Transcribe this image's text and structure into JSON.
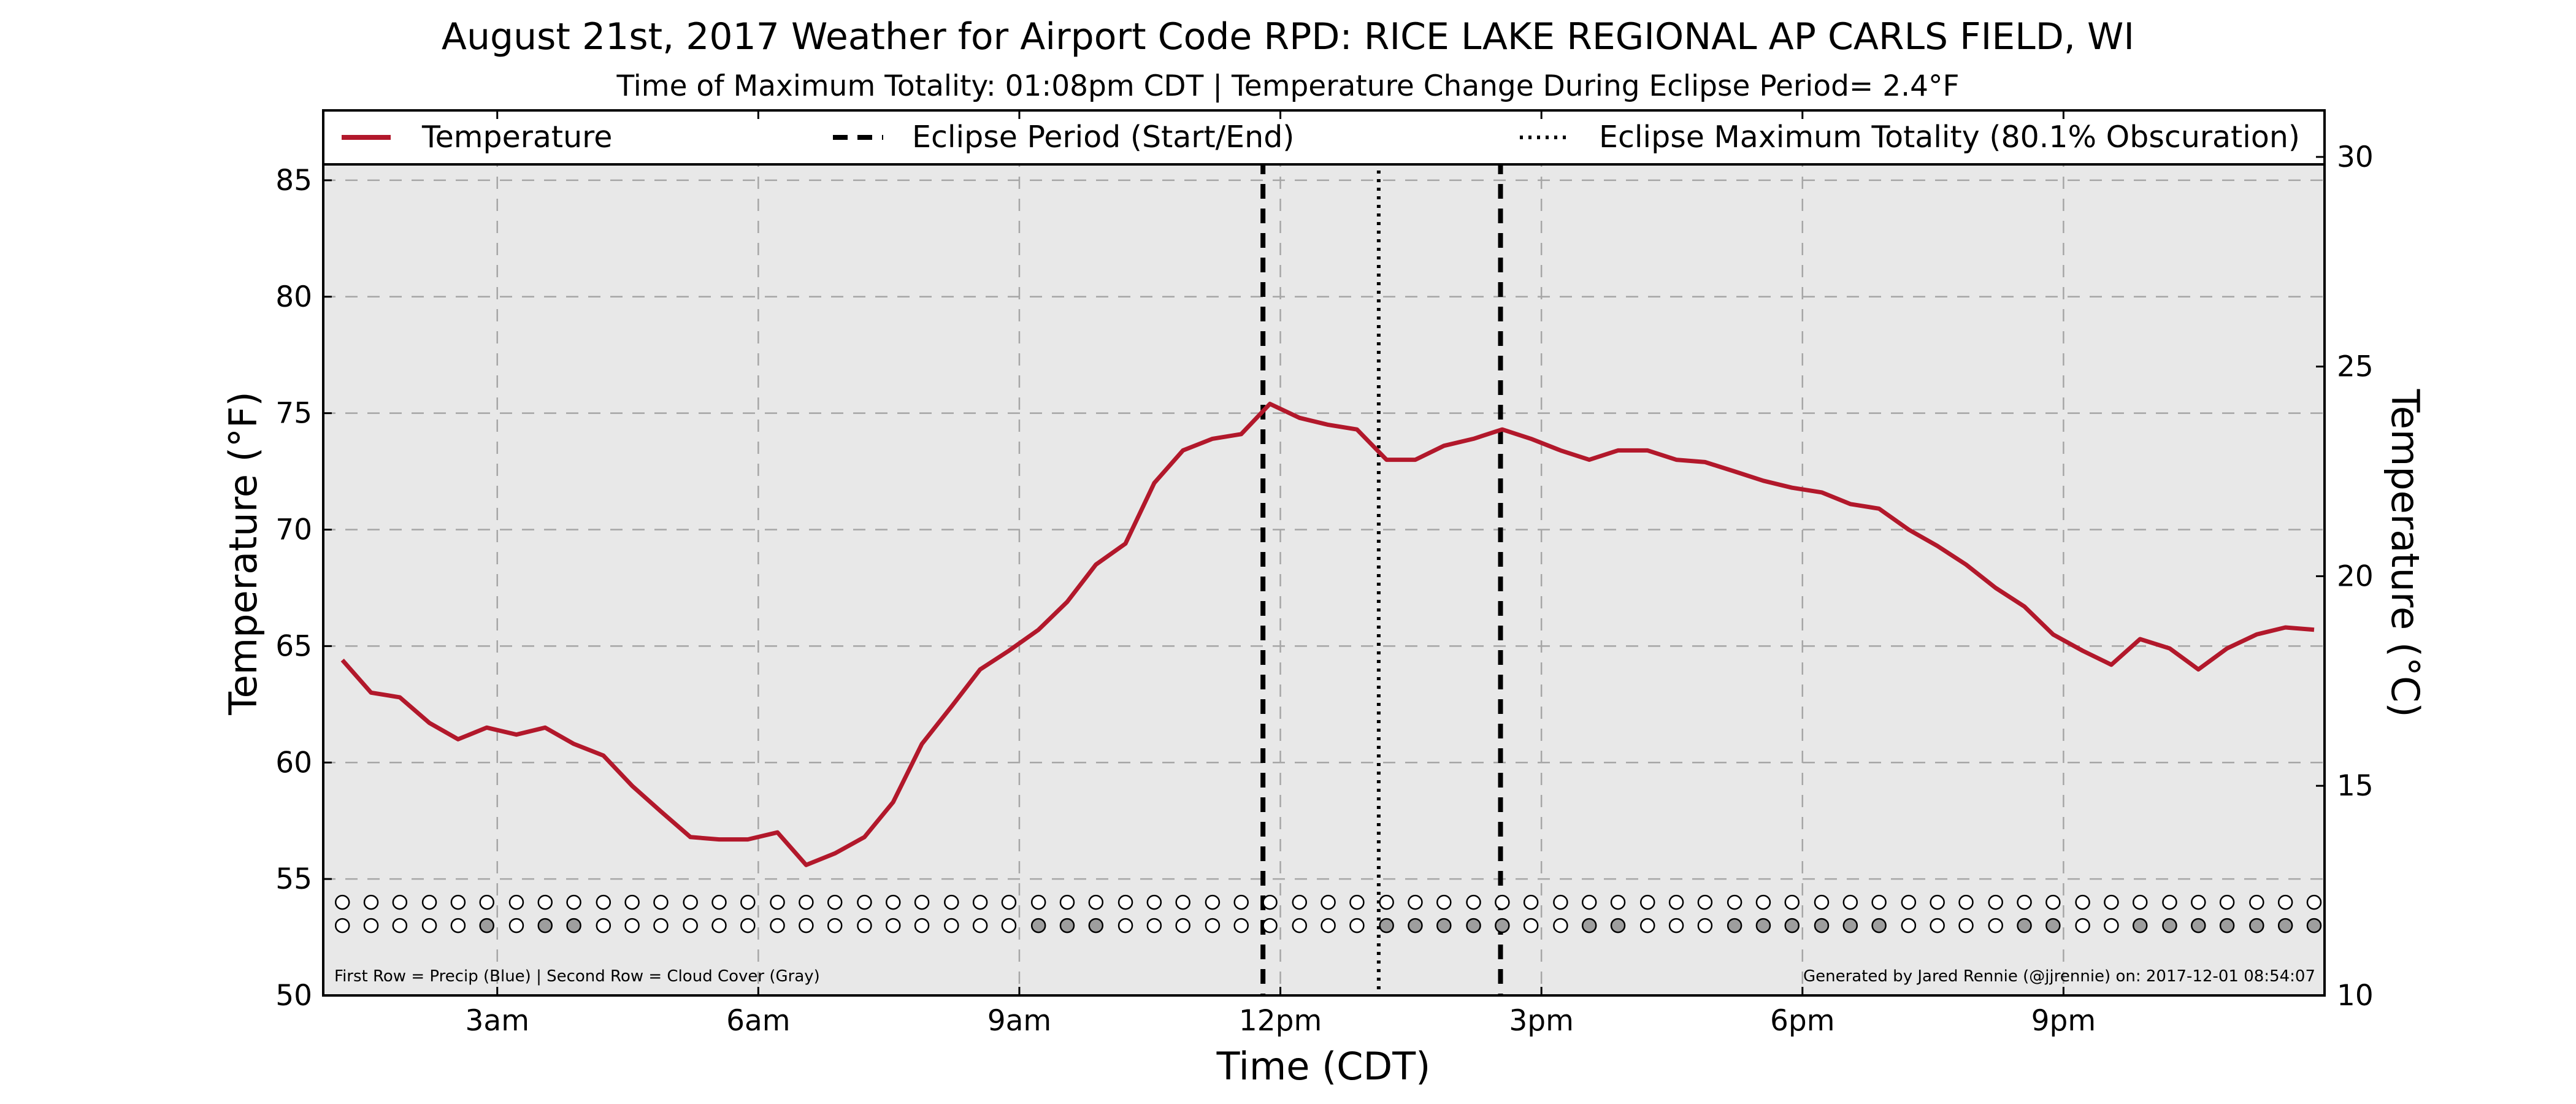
{
  "chart_data": {
    "type": "line",
    "title": "August 21st, 2017 Weather for Airport Code RPD: RICE LAKE REGIONAL AP CARLS FIELD, WI",
    "subtitle": "Time of Maximum Totality: 01:08pm CDT | Temperature Change During Eclipse Period= 2.4°F",
    "xlabel": "Time (CDT)",
    "ylabel_left": "Temperature (°F)",
    "ylabel_right": "Temperature (°C)",
    "xlim": [
      1.0,
      24.0
    ],
    "ylim_left": [
      50,
      88
    ],
    "ylim_right": [
      10,
      31.11
    ],
    "grid": true,
    "legend_placement": "top",
    "colors": {
      "temperature": "#b2182b",
      "plot_bg": "#e8e8e8",
      "cloud_fill": "#9e9e9e"
    },
    "x_ticks": [
      {
        "value": 3,
        "label": "3am"
      },
      {
        "value": 6,
        "label": "6am"
      },
      {
        "value": 9,
        "label": "9am"
      },
      {
        "value": 12,
        "label": "12pm"
      },
      {
        "value": 15,
        "label": "3pm"
      },
      {
        "value": 18,
        "label": "6pm"
      },
      {
        "value": 21,
        "label": "9pm"
      }
    ],
    "y_ticks_left": [
      50,
      55,
      60,
      65,
      70,
      75,
      80,
      85
    ],
    "y_ticks_right": [
      10,
      15,
      20,
      25,
      30
    ],
    "legend": [
      {
        "name": "Temperature",
        "style": "solid"
      },
      {
        "name": "Eclipse Period (Start/End)",
        "style": "dashed"
      },
      {
        "name": "Eclipse Maximum Totality (80.1% Obscuration)",
        "style": "dotted"
      }
    ],
    "series": [
      {
        "name": "Temperature",
        "x": [
          1.22,
          1.55,
          1.88,
          2.22,
          2.55,
          2.88,
          3.22,
          3.55,
          3.88,
          4.22,
          4.55,
          4.88,
          5.22,
          5.55,
          5.88,
          6.22,
          6.55,
          6.88,
          7.22,
          7.55,
          7.88,
          8.22,
          8.55,
          8.88,
          9.22,
          9.55,
          9.88,
          10.22,
          10.55,
          10.88,
          11.22,
          11.55,
          11.88,
          12.22,
          12.55,
          12.88,
          13.22,
          13.55,
          13.88,
          14.22,
          14.55,
          14.88,
          15.22,
          15.55,
          15.88,
          16.22,
          16.55,
          16.88,
          17.22,
          17.55,
          17.88,
          18.22,
          18.55,
          18.88,
          19.22,
          19.55,
          19.88,
          20.22,
          20.55,
          20.88,
          21.22,
          21.55,
          21.88,
          22.22,
          22.55,
          22.88,
          23.22,
          23.55,
          23.88
        ],
        "y": [
          64.4,
          63.0,
          62.8,
          61.7,
          61.0,
          61.5,
          61.2,
          61.5,
          60.8,
          60.3,
          59.0,
          57.9,
          56.8,
          56.7,
          56.7,
          57.0,
          55.6,
          56.1,
          56.8,
          58.3,
          60.8,
          62.4,
          64.0,
          64.8,
          65.7,
          66.9,
          68.5,
          69.4,
          72.0,
          73.4,
          73.9,
          74.1,
          75.4,
          74.8,
          74.5,
          74.3,
          73.0,
          73.0,
          73.6,
          73.9,
          74.3,
          73.9,
          73.4,
          73.0,
          73.4,
          73.4,
          73.0,
          72.9,
          72.5,
          72.1,
          71.8,
          71.6,
          71.1,
          70.9,
          70.0,
          69.3,
          68.5,
          67.5,
          66.7,
          65.5,
          64.8,
          64.2,
          65.3,
          64.9,
          64.0,
          64.9,
          65.5,
          65.8,
          65.7
        ]
      }
    ],
    "eclipse": {
      "start": 11.8,
      "max": 13.13,
      "end": 14.53
    },
    "indicator_rows": {
      "x": [
        1.22,
        1.55,
        1.88,
        2.22,
        2.55,
        2.88,
        3.22,
        3.55,
        3.88,
        4.22,
        4.55,
        4.88,
        5.22,
        5.55,
        5.88,
        6.22,
        6.55,
        6.88,
        7.22,
        7.55,
        7.88,
        8.22,
        8.55,
        8.88,
        9.22,
        9.55,
        9.88,
        10.22,
        10.55,
        10.88,
        11.22,
        11.55,
        11.88,
        12.22,
        12.55,
        12.88,
        13.22,
        13.55,
        13.88,
        14.22,
        14.55,
        14.88,
        15.22,
        15.55,
        15.88,
        16.22,
        16.55,
        16.88,
        17.22,
        17.55,
        17.88,
        18.22,
        18.55,
        18.88,
        19.22,
        19.55,
        19.88,
        20.22,
        20.55,
        20.88,
        21.22,
        21.55,
        21.88,
        22.22,
        22.55,
        22.88,
        23.22,
        23.55,
        23.88
      ],
      "precip_y": 54.0,
      "cloud_y": 53.0,
      "precip": [
        0,
        0,
        0,
        0,
        0,
        0,
        0,
        0,
        0,
        0,
        0,
        0,
        0,
        0,
        0,
        0,
        0,
        0,
        0,
        0,
        0,
        0,
        0,
        0,
        0,
        0,
        0,
        0,
        0,
        0,
        0,
        0,
        0,
        0,
        0,
        0,
        0,
        0,
        0,
        0,
        0,
        0,
        0,
        0,
        0,
        0,
        0,
        0,
        0,
        0,
        0,
        0,
        0,
        0,
        0,
        0,
        0,
        0,
        0,
        0,
        0,
        0,
        0,
        0,
        0,
        0,
        0,
        0,
        0
      ],
      "cloud": [
        0,
        0,
        0,
        0,
        0,
        1,
        0,
        1,
        1,
        0,
        0,
        0,
        0,
        0,
        0,
        0,
        0,
        0,
        0,
        0,
        0,
        0,
        0,
        0,
        1,
        1,
        1,
        0,
        0,
        0,
        0,
        0,
        0,
        0,
        0,
        0,
        1,
        1,
        1,
        1,
        1,
        0,
        0,
        1,
        1,
        0,
        0,
        0,
        1,
        1,
        1,
        1,
        1,
        1,
        0,
        0,
        0,
        0,
        1,
        1,
        0,
        0,
        1,
        1,
        1,
        1,
        1,
        1,
        1
      ]
    },
    "footnote_left": "First Row = Precip (Blue) | Second Row = Cloud Cover (Gray)",
    "footnote_right": "Generated by Jared Rennie (@jjrennie) on: 2017-12-01 08:54:07"
  }
}
